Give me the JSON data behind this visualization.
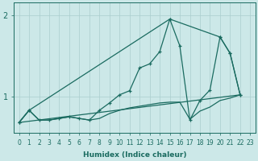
{
  "xlabel": "Humidex (Indice chaleur)",
  "bg_color": "#cce8e8",
  "line_color": "#1a6b60",
  "grid_color": "#aacece",
  "xlim": [
    -0.5,
    23.5
  ],
  "ylim": [
    0.55,
    2.15
  ],
  "yticks": [
    1,
    2
  ],
  "xticks": [
    0,
    1,
    2,
    3,
    4,
    5,
    6,
    7,
    8,
    9,
    10,
    11,
    12,
    13,
    14,
    15,
    16,
    17,
    18,
    19,
    20,
    21,
    22,
    23
  ],
  "line1_x": [
    0,
    1,
    2,
    3,
    4,
    5,
    6,
    7,
    8,
    9,
    10,
    11,
    12,
    13,
    14,
    15,
    16,
    17,
    18,
    19,
    20,
    21,
    22
  ],
  "line1_y": [
    0.68,
    0.83,
    0.71,
    0.71,
    0.73,
    0.75,
    0.73,
    0.71,
    0.73,
    0.79,
    0.83,
    0.86,
    0.88,
    0.9,
    0.92,
    0.93,
    0.93,
    0.72,
    0.82,
    0.87,
    0.95,
    0.98,
    1.02
  ],
  "line2_x": [
    0,
    1,
    2,
    3,
    4,
    5,
    6,
    7,
    8,
    9,
    10,
    11,
    12,
    13,
    14,
    15,
    16,
    17,
    18,
    19,
    20,
    21,
    22
  ],
  "line2_y": [
    0.68,
    0.83,
    0.71,
    0.71,
    0.73,
    0.75,
    0.73,
    0.71,
    0.83,
    0.92,
    1.02,
    1.07,
    1.35,
    1.4,
    1.55,
    1.95,
    1.62,
    0.71,
    0.95,
    1.08,
    1.73,
    1.53,
    1.02
  ],
  "line3_x": [
    0,
    1,
    15,
    20,
    21,
    22
  ],
  "line3_y": [
    0.68,
    0.83,
    1.95,
    1.73,
    1.53,
    1.02
  ],
  "line4_x": [
    0,
    22
  ],
  "line4_y": [
    0.68,
    1.02
  ],
  "xlabel_fontsize": 6.5,
  "tick_fontsize": 5.5,
  "ytick_fontsize": 7
}
